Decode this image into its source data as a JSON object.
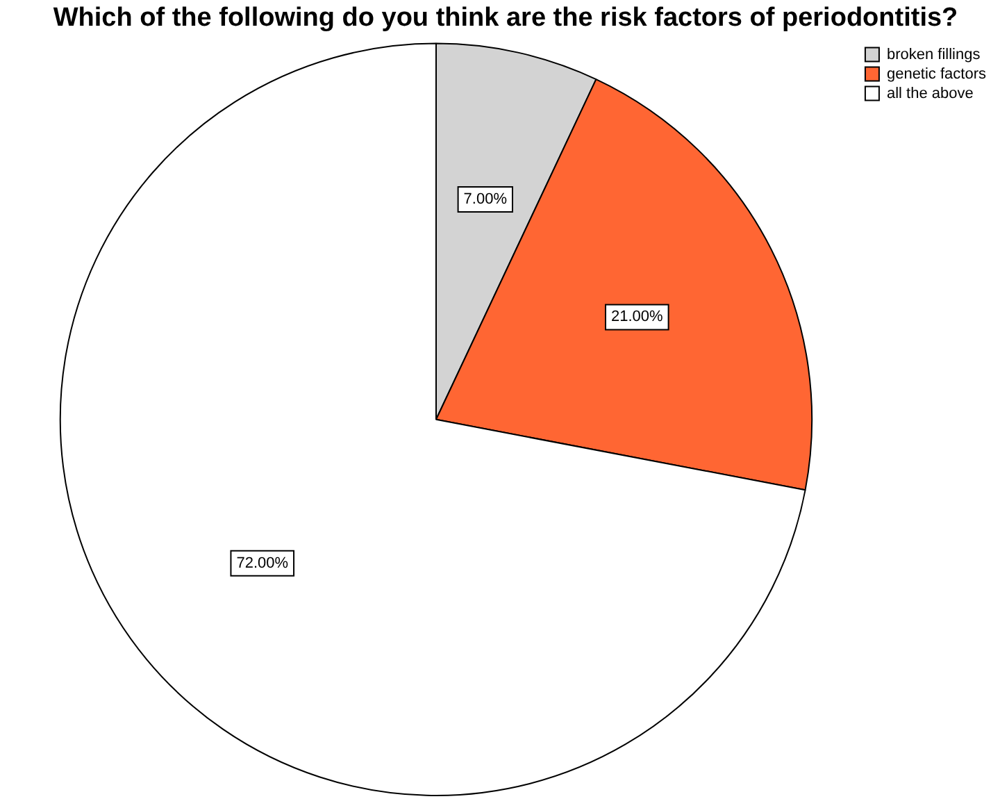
{
  "chart_data": {
    "type": "pie",
    "title": "Which of the following do you think are the risk factors of periodontitis?",
    "categories": [
      "broken fillings",
      "genetic factors",
      "all the above"
    ],
    "values": [
      7,
      21,
      72
    ],
    "colors": [
      "#d3d3d3",
      "#ff6633",
      "#ffffff"
    ],
    "value_labels": [
      "7.00%",
      "21.00%",
      "72.00%"
    ],
    "legend": "top right"
  }
}
